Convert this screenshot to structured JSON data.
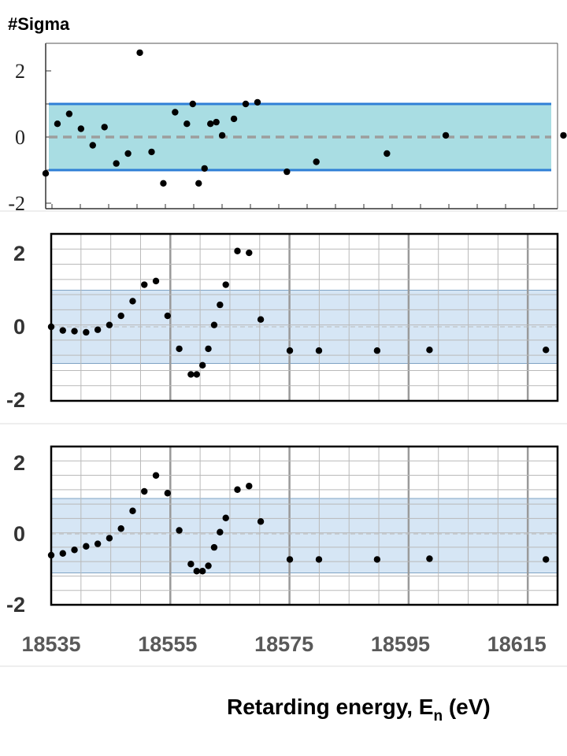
{
  "header": {
    "title": "#Sigma"
  },
  "x_axis": {
    "label_main": "Retarding energy, E",
    "label_sub": "n",
    "label_unit": " (eV)"
  },
  "colors": {
    "band_top": "#a9dde3",
    "band_edge": "#2f7fd6",
    "band_panel": "#d6e6f5",
    "band_panel_edge": "#7fa3c4",
    "grid": "#b9b9b9",
    "grid_major": "#9a9a9a",
    "dashed": "#9d9d9d",
    "point": "#000000"
  },
  "chart_data": [
    {
      "type": "scatter",
      "panel": "top",
      "ylim": [
        -2,
        2.5
      ],
      "yticks": [
        "2",
        "0",
        "-2"
      ],
      "band": [
        -1,
        1
      ],
      "grid": false,
      "points": [
        [
          18535.0,
          -1.1
        ],
        [
          18537.0,
          0.4
        ],
        [
          18539.0,
          0.7
        ],
        [
          18541.0,
          0.25
        ],
        [
          18543.0,
          -0.25
        ],
        [
          18545.0,
          0.3
        ],
        [
          18547.0,
          -0.8
        ],
        [
          18549.0,
          -0.5
        ],
        [
          18551.0,
          2.55
        ],
        [
          18553.0,
          -0.45
        ],
        [
          18555.0,
          -1.4
        ],
        [
          18557.0,
          0.75
        ],
        [
          18559.0,
          0.4
        ],
        [
          18560.0,
          1.0
        ],
        [
          18561.0,
          -1.4
        ],
        [
          18562.0,
          -0.95
        ],
        [
          18563.0,
          0.4
        ],
        [
          18564.0,
          0.45
        ],
        [
          18565.0,
          0.05
        ],
        [
          18567.0,
          0.55
        ],
        [
          18569.0,
          1.0
        ],
        [
          18571.0,
          1.05
        ],
        [
          18576.0,
          -1.05
        ],
        [
          18581.0,
          -0.75
        ],
        [
          18593.0,
          -0.5
        ],
        [
          18603.0,
          0.05
        ],
        [
          18623.0,
          0.05
        ]
      ]
    },
    {
      "type": "scatter",
      "panel": "middle",
      "ylim": [
        -2,
        2.5
      ],
      "yticks": [
        "2",
        "0",
        "-2"
      ],
      "band": [
        -1,
        1
      ],
      "grid": true,
      "points": [
        [
          18535.0,
          0.0
        ],
        [
          18537.0,
          -0.1
        ],
        [
          18539.0,
          -0.12
        ],
        [
          18541.0,
          -0.15
        ],
        [
          18543.0,
          -0.08
        ],
        [
          18545.0,
          0.05
        ],
        [
          18547.0,
          0.3
        ],
        [
          18549.0,
          0.7
        ],
        [
          18551.0,
          1.15
        ],
        [
          18553.0,
          1.25
        ],
        [
          18555.0,
          0.3
        ],
        [
          18557.0,
          -0.6
        ],
        [
          18559.0,
          -1.3
        ],
        [
          18560.0,
          -1.3
        ],
        [
          18561.0,
          -1.05
        ],
        [
          18562.0,
          -0.6
        ],
        [
          18563.0,
          0.05
        ],
        [
          18564.0,
          0.6
        ],
        [
          18565.0,
          1.15
        ],
        [
          18567.0,
          2.07
        ],
        [
          18569.0,
          2.02
        ],
        [
          18571.0,
          0.2
        ],
        [
          18576.0,
          -0.65
        ],
        [
          18581.0,
          -0.65
        ],
        [
          18591.0,
          -0.65
        ],
        [
          18600.0,
          -0.63
        ],
        [
          18620.0,
          -0.63
        ]
      ]
    },
    {
      "type": "scatter",
      "panel": "bottom",
      "ylim": [
        -2,
        2.5
      ],
      "yticks": [
        "2",
        "0",
        "-2"
      ],
      "xticks": [
        "18535",
        "18555",
        "18575",
        "18595",
        "18615"
      ],
      "band": [
        -1.1,
        1.0
      ],
      "grid": true,
      "points": [
        [
          18535.0,
          -0.6
        ],
        [
          18537.0,
          -0.55
        ],
        [
          18539.0,
          -0.45
        ],
        [
          18541.0,
          -0.35
        ],
        [
          18543.0,
          -0.28
        ],
        [
          18545.0,
          -0.12
        ],
        [
          18547.0,
          0.15
        ],
        [
          18549.0,
          0.65
        ],
        [
          18551.0,
          1.2
        ],
        [
          18553.0,
          1.65
        ],
        [
          18555.0,
          1.15
        ],
        [
          18557.0,
          0.1
        ],
        [
          18559.0,
          -0.85
        ],
        [
          18560.0,
          -1.05
        ],
        [
          18561.0,
          -1.05
        ],
        [
          18562.0,
          -0.9
        ],
        [
          18563.0,
          -0.38
        ],
        [
          18564.0,
          0.05
        ],
        [
          18565.0,
          0.45
        ],
        [
          18567.0,
          1.25
        ],
        [
          18569.0,
          1.35
        ],
        [
          18571.0,
          0.35
        ],
        [
          18576.0,
          -0.72
        ],
        [
          18581.0,
          -0.72
        ],
        [
          18591.0,
          -0.72
        ],
        [
          18600.0,
          -0.7
        ],
        [
          18620.0,
          -0.72
        ]
      ]
    }
  ]
}
